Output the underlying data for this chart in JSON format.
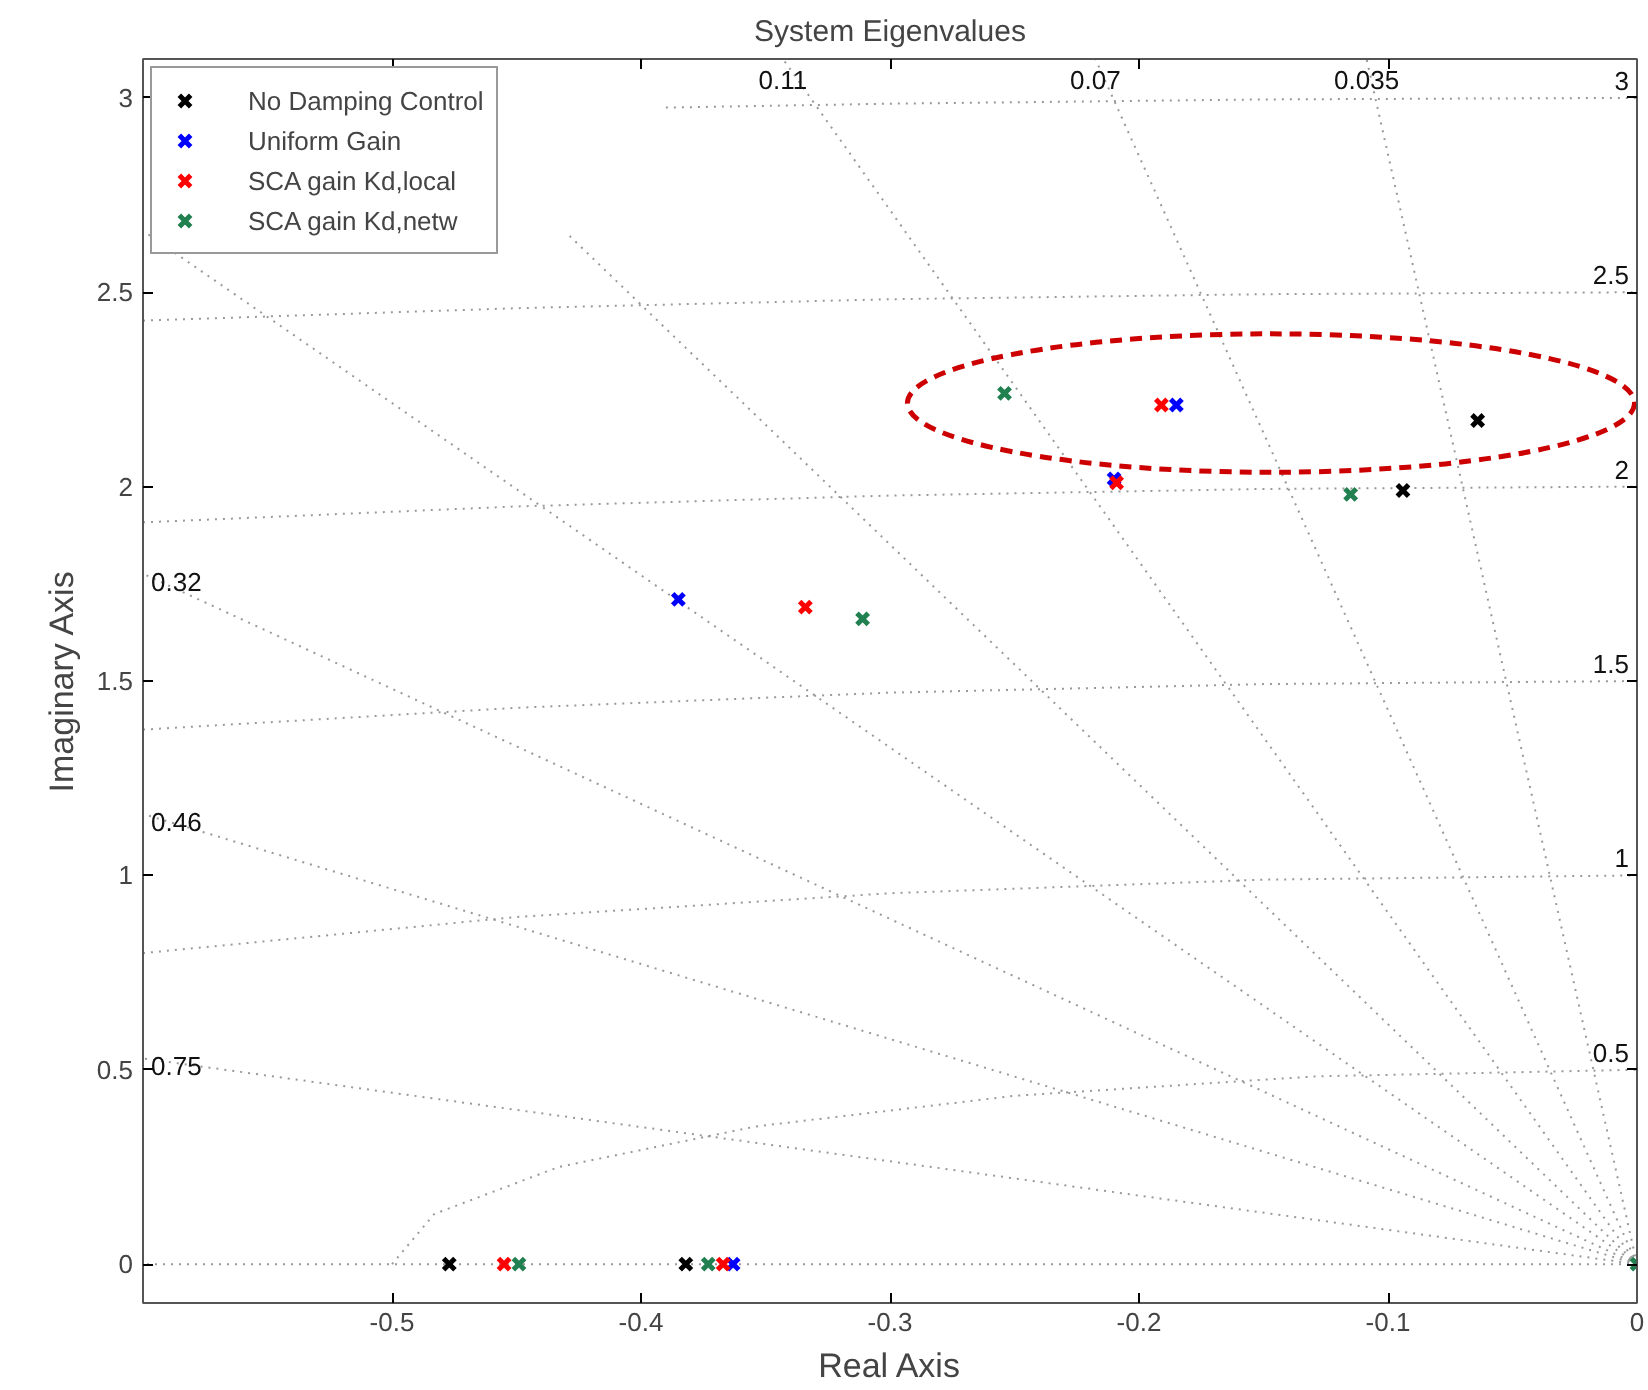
{
  "chart_data": {
    "type": "scatter",
    "title": "System Eigenvalues",
    "xlabel": "Real Axis",
    "ylabel": "Imaginary Axis",
    "xlim": [
      -0.6,
      0
    ],
    "ylim": [
      -0.1,
      3.1
    ],
    "xticks": [
      -0.5,
      -0.4,
      -0.3,
      -0.2,
      -0.1,
      0
    ],
    "yticks": [
      0,
      0.5,
      1,
      1.5,
      2,
      2.5,
      3
    ],
    "marker": "cross",
    "legend": "top left",
    "series": [
      {
        "type": "line",
        "color": "#999999",
        "line_style": "dotted",
        "marker": "none",
        "x": [
          0,
          -0.1086
        ],
        "values": [
          0,
          3.1
        ]
      },
      {
        "type": "line",
        "color": "#999999",
        "line_style": "dotted",
        "marker": "none",
        "x": [
          0,
          -0.2175
        ],
        "values": [
          0,
          3.1
        ]
      },
      {
        "type": "line",
        "color": "#999999",
        "line_style": "dotted",
        "marker": "none",
        "x": [
          0,
          -0.343
        ],
        "values": [
          0,
          3.1
        ]
      },
      {
        "type": "line",
        "color": "#999999",
        "line_style": "dotted",
        "marker": "none",
        "x": [
          0,
          -0.43
        ],
        "values": [
          0,
          2.653
        ]
      },
      {
        "type": "line",
        "color": "#999999",
        "line_style": "dotted",
        "marker": "none",
        "x": [
          0,
          -0.6
        ],
        "values": [
          0,
          2.658
        ]
      },
      {
        "type": "line",
        "color": "#999999",
        "line_style": "dotted",
        "marker": "none",
        "x": [
          0,
          -0.6
        ],
        "values": [
          0,
          1.776
        ]
      },
      {
        "type": "line",
        "color": "#999999",
        "line_style": "dotted",
        "marker": "none",
        "x": [
          0,
          -0.6
        ],
        "values": [
          0,
          1.158
        ]
      },
      {
        "type": "line",
        "color": "#999999",
        "line_style": "dotted",
        "marker": "none",
        "x": [
          0,
          -0.6
        ],
        "values": [
          0,
          0.529
        ]
      },
      {
        "type": "line",
        "color": "#999999",
        "line_style": "dotted",
        "marker": "none",
        "x": [
          0,
          -0.6
        ],
        "values": [
          0,
          0
        ]
      },
      {
        "type": "line",
        "color": "#999999",
        "line_style": "dotted",
        "marker": "none",
        "x": [
          -0.5,
          -0.483,
          -0.433,
          -0.354,
          -0.25,
          -0.129,
          0
        ],
        "values": [
          0,
          0.129,
          0.25,
          0.354,
          0.433,
          0.483,
          0.5
        ]
      },
      {
        "type": "line",
        "color": "#999999",
        "line_style": "dotted",
        "marker": "none",
        "x": [
          -0.6,
          -0.45,
          -0.3,
          -0.15,
          0
        ],
        "values": [
          0.8,
          0.893,
          0.954,
          0.989,
          1
        ]
      },
      {
        "type": "line",
        "color": "#999999",
        "line_style": "dotted",
        "marker": "none",
        "x": [
          -0.6,
          -0.45,
          -0.3,
          -0.15,
          0
        ],
        "values": [
          1.375,
          1.431,
          1.47,
          1.492,
          1.5
        ]
      },
      {
        "type": "line",
        "color": "#999999",
        "line_style": "dotted",
        "marker": "none",
        "x": [
          -0.6,
          -0.45,
          -0.3,
          -0.15,
          0
        ],
        "values": [
          1.908,
          1.949,
          1.977,
          1.994,
          2
        ]
      },
      {
        "type": "line",
        "color": "#999999",
        "line_style": "dotted",
        "marker": "none",
        "x": [
          -0.6,
          -0.45,
          -0.3,
          -0.15,
          0
        ],
        "values": [
          2.427,
          2.459,
          2.482,
          2.495,
          2.5
        ]
      },
      {
        "type": "line",
        "color": "#999999",
        "line_style": "dotted",
        "marker": "none",
        "x": [
          -0.39,
          -0.3,
          -0.15,
          0
        ],
        "values": [
          2.975,
          2.985,
          2.996,
          3
        ]
      },
      {
        "name": "No Damping Control",
        "color": "#000000",
        "x": [
          -0.477,
          -0.382,
          -0.064,
          -0.094
        ],
        "values": [
          0,
          0,
          2.17,
          1.99
        ]
      },
      {
        "name": "Uniform Gain",
        "color": "#0000ff",
        "x": [
          -0.385,
          -0.185,
          -0.21,
          -0.363
        ],
        "values": [
          1.71,
          2.21,
          2.02,
          0
        ]
      },
      {
        "name": "SCA gain Kd,local",
        "color": "#ff0000",
        "x": [
          -0.334,
          -0.191,
          -0.209,
          -0.455,
          -0.367
        ],
        "values": [
          1.69,
          2.21,
          2.01,
          0,
          0
        ]
      },
      {
        "name": "SCA gain Kd,netw",
        "color": "#208050",
        "x": [
          -0.311,
          -0.254,
          -0.115,
          -0.449,
          -0.373,
          0
        ],
        "values": [
          1.66,
          2.24,
          1.98,
          0,
          0,
          0
        ]
      }
    ],
    "annotations": [
      {
        "text": "0.035",
        "x": -0.1086,
        "y": 3.1
      },
      {
        "text": "0.07",
        "x": -0.2175,
        "y": 3.1
      },
      {
        "text": "0.11",
        "x": -0.343,
        "y": 3.1
      },
      {
        "text": "0.32",
        "x": -0.6,
        "y": 1.776
      },
      {
        "text": "0.46",
        "x": -0.6,
        "y": 1.158
      },
      {
        "text": "0.75",
        "x": -0.6,
        "y": 0.529
      },
      {
        "text": "3",
        "x": 0,
        "y": 3
      },
      {
        "text": "2.5",
        "x": 0,
        "y": 2.5
      },
      {
        "text": "2",
        "x": 0,
        "y": 2
      },
      {
        "text": "1.5",
        "x": 0,
        "y": 1.5
      },
      {
        "text": "1",
        "x": 0,
        "y": 1
      },
      {
        "text": "0.5",
        "x": 0,
        "y": 0.5
      }
    ]
  }
}
